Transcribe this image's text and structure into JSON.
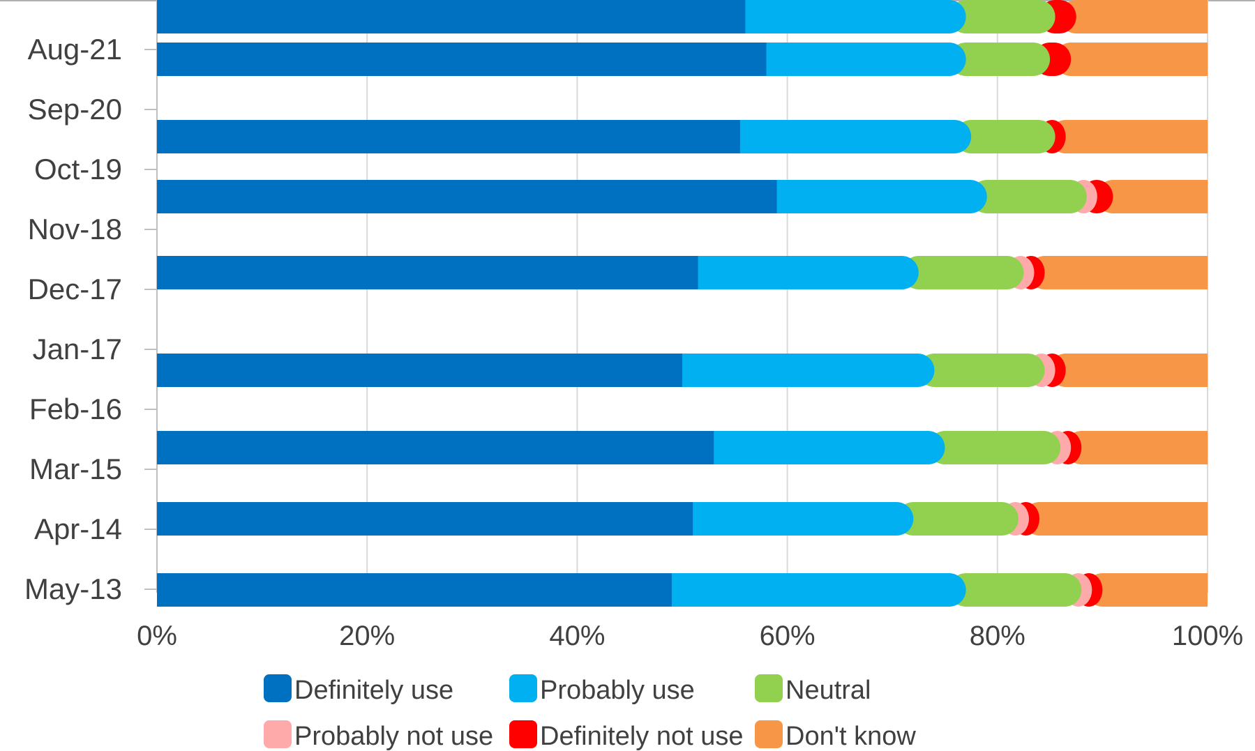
{
  "chart_data": {
    "type": "bar",
    "orientation": "horizontal",
    "stacked": true,
    "percent_stacked": true,
    "categories": [
      "Aug-21",
      "Sep-20",
      "Oct-19",
      "Nov-18",
      "Dec-17",
      "Jan-17",
      "Feb-16",
      "Mar-15",
      "Apr-14",
      "May-13"
    ],
    "x_ticks": [
      "0%",
      "20%",
      "40%",
      "60%",
      "80%",
      "100%"
    ],
    "xlim": [
      0,
      100
    ],
    "grid": "vertical",
    "legend_position": "bottom",
    "bars": [
      {
        "values": [
          56,
          21,
          7.5,
          1,
          1.5,
          13
        ]
      },
      {
        "values": [
          58,
          19,
          8,
          0,
          2,
          13
        ]
      },
      {
        "values": [
          55.5,
          22,
          8,
          0,
          1,
          13.5
        ]
      },
      {
        "values": [
          59,
          20,
          9.5,
          1,
          1.5,
          9
        ]
      },
      {
        "values": [
          51.5,
          21,
          10,
          1,
          1,
          15.5
        ]
      },
      {
        "values": [
          50,
          24,
          10.5,
          1,
          1,
          13.5
        ]
      },
      {
        "values": [
          53,
          22,
          11,
          1,
          1,
          12
        ]
      },
      {
        "values": [
          51,
          21,
          10,
          1,
          1,
          16
        ]
      },
      {
        "values": [
          49,
          28,
          11,
          1,
          1,
          10
        ]
      },
      {
        "values": [
          56,
          21,
          8.5,
          0,
          2,
          12.5
        ]
      }
    ],
    "series": [
      {
        "name": "Definitely use",
        "color": "#0070c0"
      },
      {
        "name": "Probably use",
        "color": "#00b0f0"
      },
      {
        "name": "Neutral",
        "color": "#92d050"
      },
      {
        "name": "Probably not use",
        "color": "#ffaaaa"
      },
      {
        "name": "Definitely not use",
        "color": "#ff0000"
      },
      {
        "name": "Don't know",
        "color": "#f79646"
      }
    ],
    "gridline_color": "#d9d9d9",
    "axis_color": "#bfbfbf"
  }
}
